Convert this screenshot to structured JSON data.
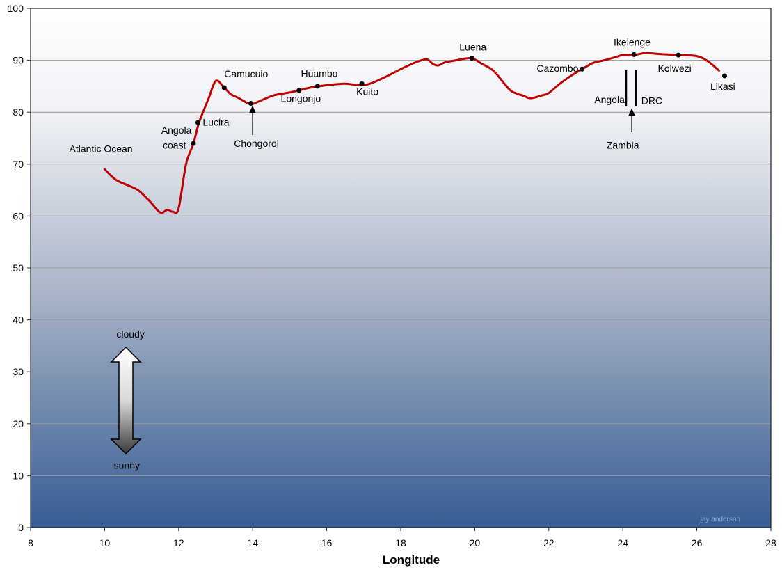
{
  "chart_data": {
    "type": "line",
    "title": "",
    "xlabel": "Longitude",
    "ylabel": "",
    "xlim": [
      8,
      28
    ],
    "ylim": [
      0,
      100
    ],
    "x_ticks": [
      "8",
      "10",
      "12",
      "14",
      "16",
      "18",
      "20",
      "22",
      "24",
      "26",
      "28"
    ],
    "y_ticks": [
      "0",
      "10",
      "20",
      "30",
      "40",
      "50",
      "60",
      "70",
      "80",
      "90",
      "100"
    ],
    "grid": "horizontal",
    "line_color": "#c00000",
    "series": [
      {
        "name": "",
        "x": [
          10.0,
          10.3,
          10.6,
          10.9,
          11.2,
          11.5,
          11.7,
          11.85,
          12.0,
          12.2,
          12.4,
          12.55,
          12.8,
          13.0,
          13.2,
          13.4,
          13.6,
          13.85,
          14.0,
          14.3,
          14.6,
          15.0,
          15.3,
          15.6,
          16.0,
          16.5,
          17.0,
          17.5,
          18.0,
          18.4,
          18.7,
          18.85,
          19.0,
          19.2,
          19.5,
          19.9,
          20.2,
          20.5,
          20.8,
          21.0,
          21.3,
          21.5,
          21.8,
          22.0,
          22.3,
          22.6,
          22.9,
          23.2,
          23.5,
          23.8,
          24.0,
          24.3,
          24.6,
          25.0,
          25.5,
          26.0,
          26.3,
          26.6
        ],
        "y": [
          69,
          67,
          66,
          65,
          63,
          60.7,
          61.2,
          60.8,
          61.5,
          70,
          74,
          78,
          82.5,
          86,
          85,
          83.5,
          82.8,
          81.8,
          81.6,
          82.5,
          83.3,
          83.8,
          84.3,
          84.8,
          85.2,
          85.5,
          85.2,
          86.5,
          88.3,
          89.6,
          90.2,
          89.4,
          89,
          89.6,
          90,
          90.4,
          89.3,
          88,
          85.5,
          84,
          83.2,
          82.7,
          83.2,
          83.7,
          85.5,
          87,
          88.3,
          89.5,
          90,
          90.6,
          91,
          91,
          91.4,
          91.2,
          91,
          90.8,
          89.8,
          88
        ]
      }
    ],
    "markers": [
      {
        "x": 12.4,
        "y": 74.0
      },
      {
        "x": 12.52,
        "y": 78.0
      },
      {
        "x": 13.23,
        "y": 84.7
      },
      {
        "x": 13.95,
        "y": 81.7
      },
      {
        "x": 15.25,
        "y": 84.2
      },
      {
        "x": 15.75,
        "y": 85.0
      },
      {
        "x": 16.95,
        "y": 85.5
      },
      {
        "x": 19.92,
        "y": 90.4
      },
      {
        "x": 22.9,
        "y": 88.3
      },
      {
        "x": 24.3,
        "y": 91.1
      },
      {
        "x": 25.5,
        "y": 91.0
      },
      {
        "x": 26.75,
        "y": 87.0
      }
    ],
    "annotations": [
      {
        "text": "Atlantic Ocean",
        "x": 9.9,
        "y": 72.3,
        "anchor": "middle"
      },
      {
        "text": "Angola",
        "x": 12.35,
        "y": 75.9,
        "anchor": "end"
      },
      {
        "text": "coast",
        "x": 12.2,
        "y": 73.0,
        "anchor": "end"
      },
      {
        "text": "Lucira",
        "x": 12.65,
        "y": 77.4,
        "anchor": "start"
      },
      {
        "text": "Camucuio",
        "x": 13.23,
        "y": 86.7,
        "anchor": "start"
      },
      {
        "text": "Chongoroi",
        "x": 14.1,
        "y": 73.3,
        "anchor": "middle"
      },
      {
        "text": "Huambo",
        "x": 15.8,
        "y": 86.8,
        "anchor": "middle"
      },
      {
        "text": "Longonjo",
        "x": 15.3,
        "y": 82.0,
        "anchor": "middle"
      },
      {
        "text": "Kuito",
        "x": 17.1,
        "y": 83.3,
        "anchor": "middle"
      },
      {
        "text": "Luena",
        "x": 19.95,
        "y": 91.9,
        "anchor": "middle"
      },
      {
        "text": "Cazombo",
        "x": 22.8,
        "y": 87.8,
        "anchor": "end"
      },
      {
        "text": "Ikelenge",
        "x": 24.25,
        "y": 92.8,
        "anchor": "middle"
      },
      {
        "text": "Kolwezi",
        "x": 25.4,
        "y": 87.8,
        "anchor": "middle"
      },
      {
        "text": "Likasi",
        "x": 26.7,
        "y": 84.3,
        "anchor": "middle"
      },
      {
        "text": "Angola",
        "x": 24.05,
        "y": 81.8,
        "anchor": "end"
      },
      {
        "text": "DRC",
        "x": 24.5,
        "y": 81.6,
        "anchor": "start"
      },
      {
        "text": "Zambia",
        "x": 24.0,
        "y": 73.0,
        "anchor": "middle"
      },
      {
        "text": "cloudy",
        "x": 10.7,
        "y": 36.6,
        "anchor": "middle",
        "color": "#000000"
      },
      {
        "text": "sunny",
        "x": 10.6,
        "y": 11.3,
        "anchor": "middle",
        "color": "#9fc2f0"
      }
    ],
    "credit": "jay anderson"
  }
}
